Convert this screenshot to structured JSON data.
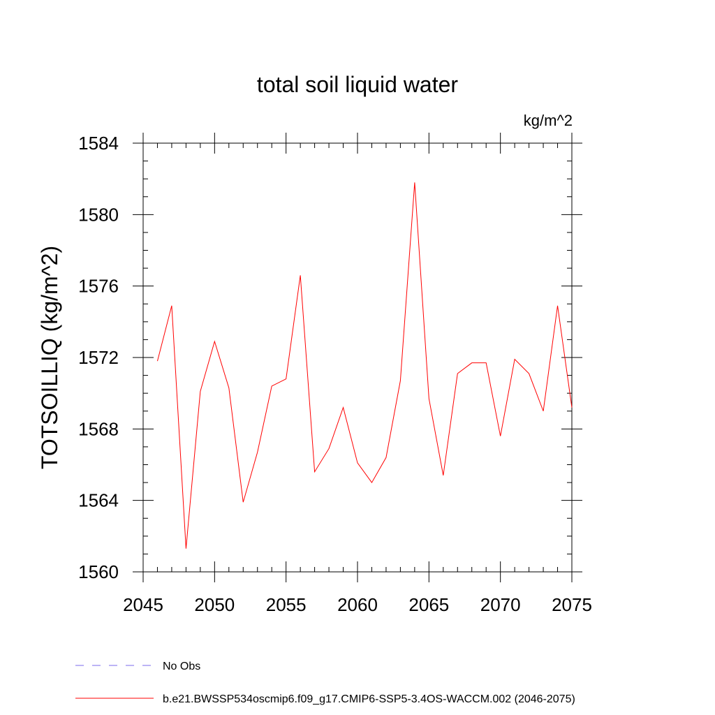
{
  "chart_data": {
    "type": "line",
    "title": "total soil liquid water",
    "units_label": "kg/m^2",
    "xlabel": "",
    "ylabel": "TOTSOILLIQ  (kg/m^2)",
    "xlim": [
      2045,
      2075
    ],
    "ylim": [
      1560,
      1584
    ],
    "x_ticks": [
      2045,
      2050,
      2055,
      2060,
      2065,
      2070,
      2075
    ],
    "y_ticks": [
      1560,
      1564,
      1568,
      1572,
      1576,
      1580,
      1584
    ],
    "x_minor_step": 1,
    "y_minor_step": 1,
    "grid": false,
    "series": [
      {
        "name": "b.e21.BWSSP534oscmip6.f09_g17.CMIP6-SSP5-3.4OS-WACCM.002 (2046-2075)",
        "color": "#ff0000",
        "style": "solid",
        "x": [
          2046,
          2047,
          2048,
          2049,
          2050,
          2051,
          2052,
          2053,
          2054,
          2055,
          2056,
          2057,
          2058,
          2059,
          2060,
          2061,
          2062,
          2063,
          2064,
          2065,
          2066,
          2067,
          2068,
          2069,
          2070,
          2071,
          2072,
          2073,
          2074,
          2075
        ],
        "values": [
          1571.8,
          1574.9,
          1561.3,
          1570.1,
          1572.9,
          1570.3,
          1563.9,
          1566.7,
          1570.4,
          1570.8,
          1576.6,
          1565.6,
          1566.9,
          1569.2,
          1566.1,
          1565.0,
          1566.4,
          1570.7,
          1581.8,
          1569.7,
          1565.4,
          1571.1,
          1571.7,
          1571.7,
          1567.6,
          1571.9,
          1571.1,
          1569.0,
          1574.9,
          1569.2
        ]
      }
    ],
    "legend": [
      {
        "label": "No Obs",
        "color": "#7b68ee",
        "style": "dashed"
      },
      {
        "label": "b.e21.BWSSP534oscmip6.f09_g17.CMIP6-SSP5-3.4OS-WACCM.002 (2046-2075)",
        "color": "#ff0000",
        "style": "solid"
      }
    ],
    "legend_position": "bottom-left"
  }
}
